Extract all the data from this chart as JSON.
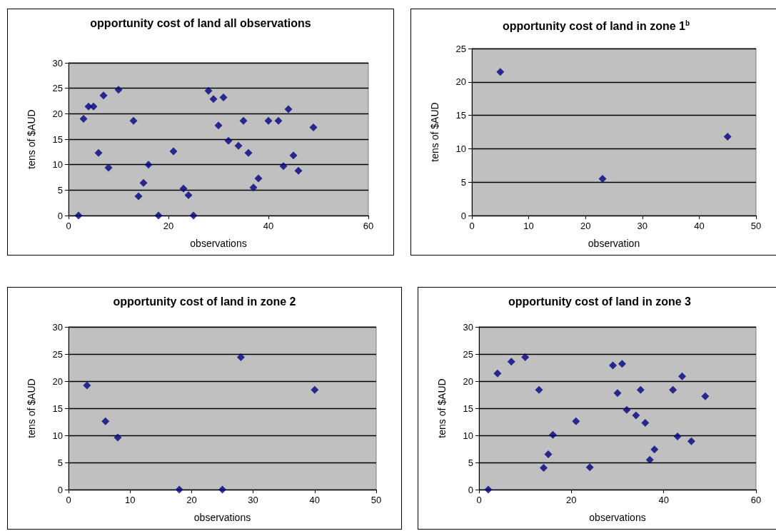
{
  "chart_data": [
    {
      "type": "scatter",
      "title": "opportunity cost of land all observations",
      "xlabel": "observations",
      "ylabel": "tens of $AUD",
      "color": "#000080",
      "marker": "diamond",
      "grid": "y",
      "xlim": [
        0,
        60
      ],
      "ylim": [
        0,
        30
      ],
      "xticks": [
        0,
        20,
        40,
        60
      ],
      "yticks": [
        0,
        5,
        10,
        15,
        20,
        25,
        30
      ],
      "x": [
        2,
        3,
        4,
        5,
        6,
        7,
        8,
        10,
        13,
        14,
        15,
        16,
        18,
        21,
        23,
        24,
        25,
        28,
        29,
        30,
        31,
        32,
        34,
        35,
        36,
        37,
        38,
        40,
        42,
        43,
        44,
        45,
        46,
        49
      ],
      "values": [
        0,
        19.0,
        21.4,
        21.4,
        12.3,
        23.6,
        9.4,
        24.7,
        18.6,
        3.8,
        6.4,
        10.0,
        0,
        12.6,
        5.3,
        4.0,
        0,
        24.5,
        22.9,
        17.7,
        23.2,
        14.7,
        13.7,
        18.6,
        12.3,
        5.5,
        7.3,
        18.6,
        18.6,
        9.7,
        20.9,
        11.8,
        8.8,
        17.3
      ]
    },
    {
      "type": "scatter",
      "title": "opportunity cost of land in zone 1$^{b}$",
      "xlabel": "observation",
      "ylabel": "tens of $AUD",
      "color": "#000080",
      "marker": "diamond",
      "grid": "y",
      "xlim": [
        0,
        50
      ],
      "ylim": [
        0,
        25
      ],
      "xticks": [
        0,
        10,
        20,
        30,
        40,
        50
      ],
      "yticks": [
        0,
        5,
        10,
        15,
        20,
        25
      ],
      "x": [
        5,
        23,
        45
      ],
      "values": [
        21.5,
        5.5,
        11.8
      ]
    },
    {
      "type": "scatter",
      "title": "opportunity cost of land in zone 2",
      "xlabel": "observations",
      "ylabel": "tens of $AUD",
      "color": "#000080",
      "marker": "diamond",
      "grid": "y",
      "xlim": [
        0,
        50
      ],
      "ylim": [
        0,
        30
      ],
      "xticks": [
        0,
        10,
        20,
        30,
        40,
        50
      ],
      "yticks": [
        0,
        5,
        10,
        15,
        20,
        25,
        30
      ],
      "x": [
        3,
        6,
        8,
        18,
        25,
        28,
        40
      ],
      "values": [
        19.2,
        12.6,
        9.6,
        0,
        0,
        24.4,
        18.4
      ]
    },
    {
      "type": "scatter",
      "title": "opportunity cost of land in zone 3",
      "xlabel": "observations",
      "ylabel": "tens of $AUD",
      "color": "#000080",
      "marker": "diamond",
      "grid": "y",
      "xlim": [
        0,
        60
      ],
      "ylim": [
        0,
        30
      ],
      "xticks": [
        0,
        20,
        40,
        60
      ],
      "yticks": [
        0,
        5,
        10,
        15,
        20,
        25,
        30
      ],
      "x": [
        2,
        4,
        7,
        10,
        13,
        14,
        15,
        16,
        21,
        24,
        29,
        30,
        31,
        32,
        34,
        35,
        36,
        37,
        38,
        42,
        43,
        44,
        46,
        49
      ],
      "values": [
        0,
        21.4,
        23.6,
        24.4,
        18.4,
        4.0,
        6.5,
        10.1,
        12.6,
        4.1,
        22.9,
        17.8,
        23.2,
        14.7,
        13.7,
        18.4,
        12.3,
        5.5,
        7.4,
        18.4,
        9.8,
        20.9,
        8.9,
        17.2
      ]
    }
  ]
}
